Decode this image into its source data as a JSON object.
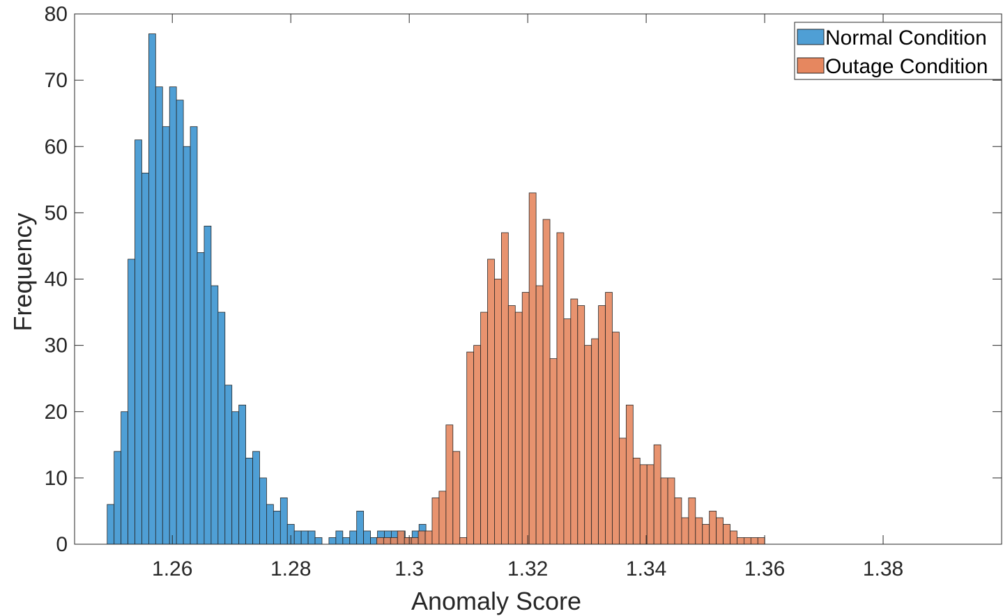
{
  "chart_data": {
    "type": "bar",
    "subtype": "overlaid-histogram",
    "xlabel": "Anomaly Score",
    "ylabel": "Frequency",
    "xlim": [
      1.2435,
      1.4
    ],
    "ylim": [
      0,
      80
    ],
    "xticks": [
      1.26,
      1.28,
      1.3,
      1.32,
      1.34,
      1.36,
      1.38
    ],
    "yticks": [
      0,
      10,
      20,
      30,
      40,
      50,
      60,
      70,
      80
    ],
    "grid": false,
    "legend_position": "top-right",
    "series": [
      {
        "name": "Normal Condition",
        "color": "#4f9fd5",
        "bin_start": 1.249,
        "bin_width": 0.00117,
        "counts": [
          6,
          14,
          20,
          43,
          61,
          56,
          77,
          69,
          63,
          69,
          67,
          60,
          63,
          44,
          48,
          39,
          35,
          24,
          20,
          21,
          13,
          14,
          10,
          6,
          5,
          7,
          3,
          2,
          2,
          2,
          1,
          0,
          1,
          2,
          1,
          2,
          5,
          2,
          1,
          2,
          2,
          2,
          2,
          1,
          2,
          3,
          0,
          0,
          0,
          0,
          0,
          0,
          0,
          0,
          0,
          0,
          0,
          0,
          0,
          0,
          0,
          0,
          0,
          0,
          0,
          0,
          0,
          0,
          0,
          0,
          0,
          0,
          0,
          0,
          0,
          0,
          0,
          0,
          0,
          0,
          0,
          0,
          0,
          0,
          0,
          0,
          0,
          0,
          0,
          0,
          0,
          0,
          0,
          0,
          0,
          0,
          0,
          0,
          0,
          0,
          0,
          0,
          0,
          0,
          0,
          0,
          0,
          0,
          0,
          0,
          0,
          0,
          0,
          0,
          0,
          0,
          0,
          0,
          0,
          0,
          0
        ]
      },
      {
        "name": "Outage Condition",
        "color": "#e6875f",
        "bin_start": 1.2945,
        "bin_width": 0.00117,
        "counts": [
          1,
          1,
          1,
          2,
          1,
          1,
          2,
          2,
          7,
          8,
          18,
          14,
          1,
          29,
          30,
          35,
          43,
          40,
          47,
          36,
          35,
          38,
          53,
          39,
          49,
          28,
          47,
          34,
          37,
          36,
          30,
          31,
          36,
          38,
          32,
          16,
          21,
          13,
          12,
          12,
          15,
          10,
          10,
          7,
          4,
          7,
          4,
          3,
          5,
          4,
          3,
          2,
          1,
          1,
          1,
          1
        ]
      }
    ]
  }
}
